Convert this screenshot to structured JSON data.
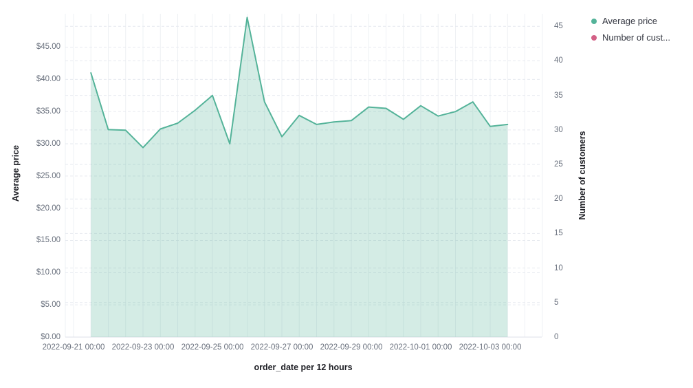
{
  "legend": {
    "items": [
      {
        "label": "Average price",
        "series": "Average price",
        "color": "#54B399"
      },
      {
        "label": "Number of cust...",
        "series": "Number of customers",
        "color": "#D36086"
      }
    ]
  },
  "colors": {
    "series_green": "#54B399",
    "series_green_fill": "rgba(84,179,153,0.25)",
    "series_pink": "#D36086",
    "grid_horizontal": "#e6e9ef",
    "grid_vertical": "#eef0f4",
    "baseline": "#dde1e8",
    "tick_text": "#69707d",
    "title_text": "#1d1e24"
  },
  "chart_data": {
    "type": "area",
    "title": "",
    "xlabel": "order_date per 12 hours",
    "ylabel_left": "Average price",
    "ylabel_right": "Number of customers",
    "legend_position": "top-right",
    "grid": true,
    "x": [
      "2022-09-21 12:00",
      "2022-09-22 00:00",
      "2022-09-22 12:00",
      "2022-09-23 00:00",
      "2022-09-23 12:00",
      "2022-09-24 00:00",
      "2022-09-24 12:00",
      "2022-09-25 00:00",
      "2022-09-25 12:00",
      "2022-09-26 00:00",
      "2022-09-26 12:00",
      "2022-09-27 00:00",
      "2022-09-27 12:00",
      "2022-09-28 00:00",
      "2022-09-28 12:00",
      "2022-09-29 00:00",
      "2022-09-29 12:00",
      "2022-09-30 00:00",
      "2022-09-30 12:00",
      "2022-10-01 00:00",
      "2022-10-01 12:00",
      "2022-10-02 00:00",
      "2022-10-02 12:00",
      "2022-10-03 00:00",
      "2022-10-03 12:00"
    ],
    "series": [
      {
        "name": "Average price",
        "yaxis": "left",
        "color": "#54B399",
        "fill": "rgba(84,179,153,0.25)",
        "values": [
          41.0,
          32.2,
          32.1,
          29.4,
          32.3,
          33.2,
          35.2,
          37.5,
          30.0,
          49.6,
          36.5,
          31.1,
          34.4,
          33.0,
          33.4,
          33.6,
          35.7,
          35.5,
          33.8,
          35.9,
          34.3,
          35.0,
          36.5,
          32.7,
          33.0
        ]
      },
      {
        "name": "Number of customers",
        "yaxis": "right",
        "color": "#D36086",
        "values": []
      }
    ],
    "left_axis": {
      "title": "Average price",
      "tick_labels": [
        "$0.00",
        "$5.00",
        "$10.00",
        "$15.00",
        "$20.00",
        "$25.00",
        "$30.00",
        "$35.00",
        "$40.00",
        "$45.00"
      ],
      "tick_values": [
        0,
        5,
        10,
        15,
        20,
        25,
        30,
        35,
        40,
        45
      ],
      "range": [
        0,
        50.2
      ]
    },
    "right_axis": {
      "title": "Number of customers",
      "tick_labels": [
        "0",
        "5",
        "10",
        "15",
        "20",
        "25",
        "30",
        "35",
        "40",
        "45"
      ],
      "tick_values": [
        0,
        5,
        10,
        15,
        20,
        25,
        30,
        35,
        40,
        45
      ],
      "range": [
        0,
        46.8
      ]
    },
    "x_ticks": [
      "2022-09-21 00:00",
      "2022-09-23 00:00",
      "2022-09-25 00:00",
      "2022-09-27 00:00",
      "2022-09-29 00:00",
      "2022-10-01 00:00",
      "2022-10-03 00:00"
    ]
  }
}
